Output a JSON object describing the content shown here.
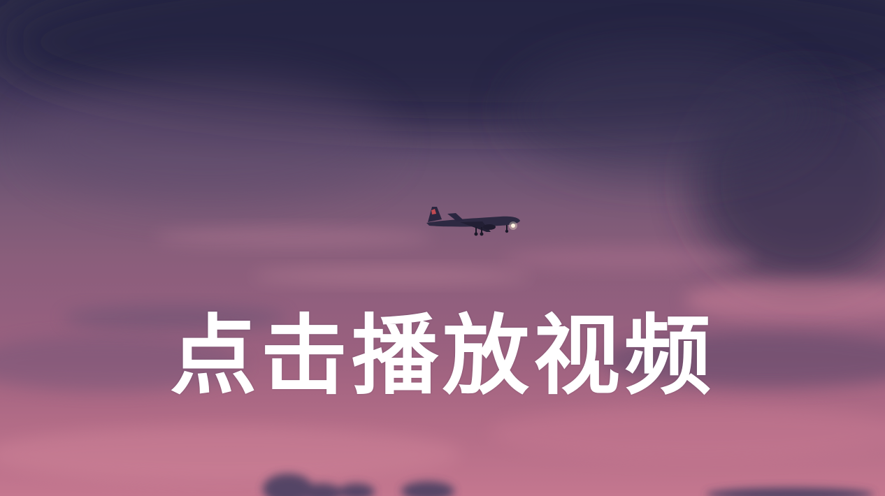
{
  "video": {
    "play_prompt": "点击播放视频",
    "cover_icon": "airplane-icon"
  },
  "colors": {
    "sky_top": "#2b2a47",
    "sky_mid": "#7b5a77",
    "sky_bottom": "#c4778f",
    "text": "#ffffff"
  }
}
